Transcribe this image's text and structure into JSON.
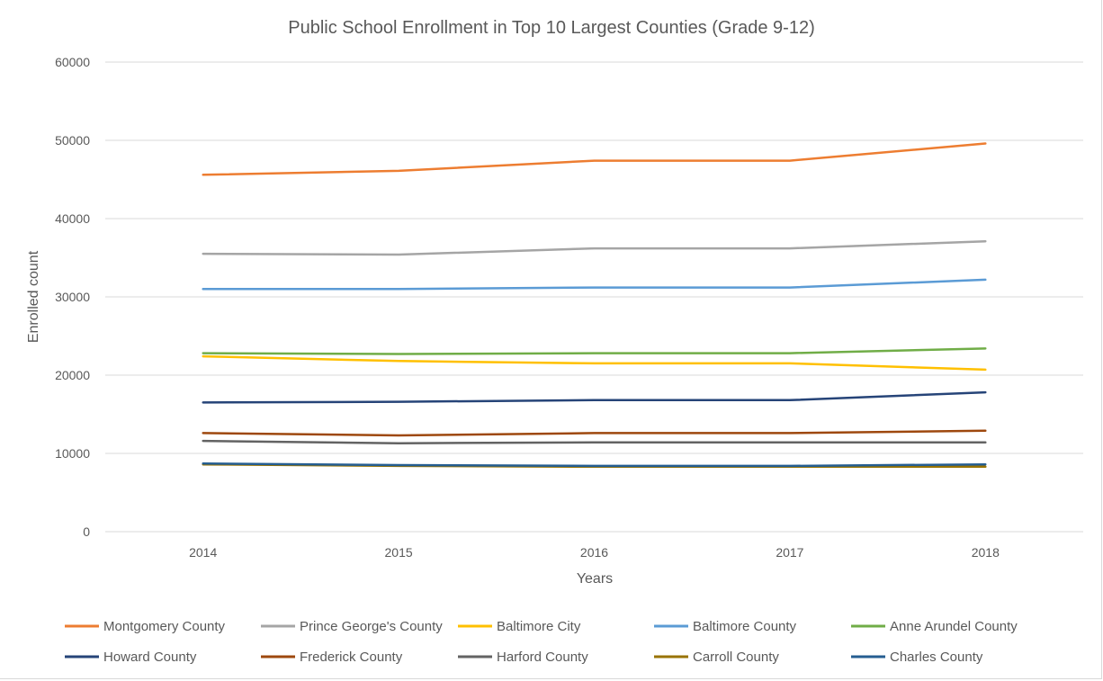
{
  "chart_data": {
    "type": "line",
    "title": "Public School Enrollment in Top 10 Largest Counties (Grade 9-12)",
    "xlabel": "Years",
    "ylabel": "Enrolled count",
    "categories": [
      "2014",
      "2015",
      "2016",
      "2017",
      "2018"
    ],
    "ylim": [
      0,
      60000
    ],
    "yticks": [
      0,
      10000,
      20000,
      30000,
      40000,
      50000,
      60000
    ],
    "grid": true,
    "legend_position": "bottom",
    "series": [
      {
        "name": "Montgomery County",
        "color": "#ED7D31",
        "values": [
          45600,
          46100,
          47400,
          47400,
          49600
        ]
      },
      {
        "name": "Prince George's County",
        "color": "#A5A5A5",
        "values": [
          35500,
          35400,
          36200,
          36200,
          37100
        ]
      },
      {
        "name": "Baltimore City",
        "color": "#FFC000",
        "values": [
          22400,
          21800,
          21500,
          21500,
          20700
        ]
      },
      {
        "name": "Baltimore County",
        "color": "#5B9BD5",
        "values": [
          31000,
          31000,
          31200,
          31200,
          32200
        ]
      },
      {
        "name": "Anne Arundel County",
        "color": "#70AD47",
        "values": [
          22800,
          22700,
          22800,
          22800,
          23400
        ]
      },
      {
        "name": "Howard County",
        "color": "#264478",
        "values": [
          16500,
          16600,
          16800,
          16800,
          17800
        ]
      },
      {
        "name": "Frederick County",
        "color": "#9E480E",
        "values": [
          12600,
          12300,
          12600,
          12600,
          12900
        ]
      },
      {
        "name": "Harford County",
        "color": "#636363",
        "values": [
          11600,
          11300,
          11400,
          11400,
          11400
        ]
      },
      {
        "name": "Carroll County",
        "color": "#997300",
        "values": [
          8600,
          8400,
          8300,
          8300,
          8300
        ]
      },
      {
        "name": "Charles County",
        "color": "#255E91",
        "values": [
          8700,
          8500,
          8400,
          8400,
          8600
        ]
      }
    ]
  }
}
